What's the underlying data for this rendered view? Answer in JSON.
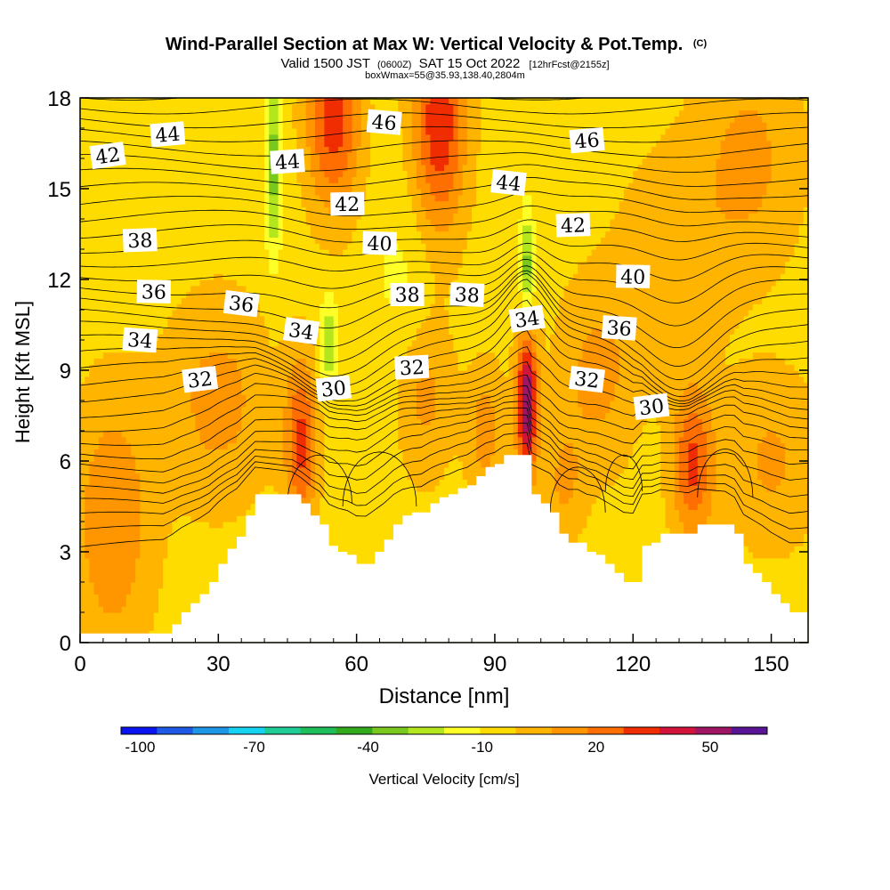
{
  "chart_data": {
    "type": "heatmap",
    "title": "Wind-Parallel Section at Max W: Vertical Velocity & Pot.Temp.",
    "title_mark": "(C)",
    "subtitle": {
      "prefix": "Valid 1500 JST",
      "utc": "(0600Z)",
      "date": "SAT 15 Oct 2022",
      "forecast": "[12hrFcst@2155z]"
    },
    "box_line": "boxWmax=55@35.93,138.40,2804m",
    "xlabel": "Distance [nm]",
    "ylabel": "Height [Kft MSL]",
    "xlim": [
      0,
      158
    ],
    "ylim": [
      0,
      18
    ],
    "x_ticks": [
      0,
      30,
      60,
      90,
      120,
      150
    ],
    "y_ticks": [
      0,
      3,
      6,
      9,
      12,
      15,
      18
    ],
    "colorbar": {
      "label": "Vertical Velocity [cm/s]",
      "tick_labels": [
        "-100",
        "-70",
        "-40",
        "-10",
        "20",
        "50"
      ],
      "tick_values": [
        -100,
        -70,
        -40,
        -10,
        20,
        50
      ],
      "range": [
        -105,
        65
      ],
      "colors": [
        "#0a14f0",
        "#1e5ae6",
        "#1e96e6",
        "#14d2f0",
        "#1ecc96",
        "#1ebe5a",
        "#32aa1e",
        "#78c81e",
        "#b4e61e",
        "#ffff28",
        "#ffdc00",
        "#ffb400",
        "#ff9600",
        "#ff6e00",
        "#f02d00",
        "#d2143c",
        "#a01464",
        "#5a1496"
      ]
    },
    "terrain_kft": [
      [
        0,
        0.3
      ],
      [
        18,
        0.3
      ],
      [
        20,
        0.6
      ],
      [
        22,
        1
      ],
      [
        24,
        1.3
      ],
      [
        26,
        1.6
      ],
      [
        28,
        2
      ],
      [
        30,
        2.6
      ],
      [
        32,
        3.1
      ],
      [
        34,
        3.5
      ],
      [
        36,
        4.2
      ],
      [
        38,
        4.9
      ],
      [
        46,
        4.9
      ],
      [
        48,
        4.6
      ],
      [
        50,
        4.2
      ],
      [
        52,
        3.9
      ],
      [
        54,
        3.2
      ],
      [
        56,
        3.0
      ],
      [
        58,
        2.9
      ],
      [
        60,
        2.6
      ],
      [
        62,
        2.6
      ],
      [
        64,
        3.0
      ],
      [
        66,
        3.4
      ],
      [
        68,
        3.9
      ],
      [
        70,
        4.2
      ],
      [
        72,
        4.3
      ],
      [
        74,
        4.3
      ],
      [
        76,
        4.6
      ],
      [
        78,
        4.8
      ],
      [
        80,
        4.9
      ],
      [
        82,
        5.1
      ],
      [
        84,
        5.2
      ],
      [
        86,
        5.5
      ],
      [
        88,
        5.8
      ],
      [
        90,
        5.9
      ],
      [
        92,
        6.2
      ],
      [
        97,
        6.2
      ],
      [
        98,
        4.9
      ],
      [
        100,
        4.6
      ],
      [
        102,
        4.3
      ],
      [
        104,
        3.6
      ],
      [
        106,
        3.3
      ],
      [
        108,
        3.3
      ],
      [
        110,
        3.0
      ],
      [
        112,
        2.9
      ],
      [
        114,
        2.6
      ],
      [
        116,
        2.3
      ],
      [
        118,
        2.0
      ],
      [
        120,
        2.0
      ],
      [
        122,
        3.2
      ],
      [
        124,
        3.3
      ],
      [
        126,
        3.6
      ],
      [
        132,
        3.6
      ],
      [
        134,
        3.9
      ],
      [
        140,
        3.9
      ],
      [
        142,
        3.6
      ],
      [
        144,
        2.6
      ],
      [
        146,
        2.3
      ],
      [
        148,
        2.0
      ],
      [
        150,
        1.6
      ],
      [
        152,
        1.3
      ],
      [
        154,
        1.0
      ],
      [
        156,
        1.0
      ],
      [
        158,
        1.0
      ]
    ],
    "w_field_cm_s": {
      "background": -5,
      "blobs": [
        {
          "x": 78,
          "y": 17.2,
          "sx": 4,
          "sy": 2.6,
          "amp": 40
        },
        {
          "x": 55,
          "y": 17.4,
          "sx": 4,
          "sy": 2.2,
          "amp": 38
        },
        {
          "x": 97,
          "y": 7.9,
          "sx": 1.6,
          "sy": 1.7,
          "amp": 60
        },
        {
          "x": 48,
          "y": 6.6,
          "sx": 2.4,
          "sy": 1.9,
          "amp": 35
        },
        {
          "x": 133,
          "y": 5.9,
          "sx": 3.2,
          "sy": 1.7,
          "amp": 34
        },
        {
          "x": 42,
          "y": 15.8,
          "sx": 1.2,
          "sy": 2.2,
          "amp": -30
        },
        {
          "x": 97,
          "y": 12.4,
          "sx": 1.1,
          "sy": 1.3,
          "amp": -30
        },
        {
          "x": 54,
          "y": 9.9,
          "sx": 1.4,
          "sy": 1.1,
          "amp": -25
        },
        {
          "x": 7,
          "y": 4.0,
          "sx": 6,
          "sy": 3.0,
          "amp": 22
        },
        {
          "x": 30,
          "y": 8.0,
          "sx": 8,
          "sy": 2.4,
          "amp": 17
        },
        {
          "x": 112,
          "y": 8.8,
          "sx": 6,
          "sy": 2.2,
          "amp": 16
        },
        {
          "x": 150,
          "y": 6.0,
          "sx": 7,
          "sy": 2.0,
          "amp": 15
        },
        {
          "x": 75,
          "y": 8.2,
          "sx": 4,
          "sy": 1.9,
          "amp": 16
        },
        {
          "x": 88,
          "y": 7.0,
          "sx": 3,
          "sy": 1.5,
          "amp": 18
        },
        {
          "x": 145,
          "y": 16.0,
          "sx": 8,
          "sy": 2.6,
          "amp": 16
        },
        {
          "x": 70,
          "y": 12.0,
          "sx": 5,
          "sy": 2.0,
          "amp": -8
        },
        {
          "x": 128,
          "y": 12.5,
          "sx": 8,
          "sy": 2.5,
          "amp": 12
        },
        {
          "x": 105,
          "y": 5.2,
          "sx": 3,
          "sy": 1.3,
          "amp": 14
        }
      ]
    },
    "theta_labels": [
      {
        "text": "42",
        "x": 6,
        "y": 16.1
      },
      {
        "text": "44",
        "x": 19,
        "y": 16.8
      },
      {
        "text": "38",
        "x": 13,
        "y": 13.3
      },
      {
        "text": "36",
        "x": 16,
        "y": 11.6
      },
      {
        "text": "34",
        "x": 13,
        "y": 10.0
      },
      {
        "text": "36",
        "x": 35,
        "y": 11.2
      },
      {
        "text": "32",
        "x": 26,
        "y": 8.7
      },
      {
        "text": "44",
        "x": 45,
        "y": 15.9
      },
      {
        "text": "42",
        "x": 58,
        "y": 14.5
      },
      {
        "text": "40",
        "x": 65,
        "y": 13.2
      },
      {
        "text": "46",
        "x": 66,
        "y": 17.2
      },
      {
        "text": "34",
        "x": 48,
        "y": 10.3
      },
      {
        "text": "30",
        "x": 55,
        "y": 8.4
      },
      {
        "text": "32",
        "x": 72,
        "y": 9.1
      },
      {
        "text": "38",
        "x": 71,
        "y": 11.5
      },
      {
        "text": "38",
        "x": 84,
        "y": 11.5
      },
      {
        "text": "44",
        "x": 93,
        "y": 15.2
      },
      {
        "text": "34",
        "x": 97,
        "y": 10.7
      },
      {
        "text": "46",
        "x": 110,
        "y": 16.6
      },
      {
        "text": "42",
        "x": 107,
        "y": 13.8
      },
      {
        "text": "40",
        "x": 120,
        "y": 12.1
      },
      {
        "text": "36",
        "x": 117,
        "y": 10.4
      },
      {
        "text": "32",
        "x": 110,
        "y": 8.7
      },
      {
        "text": "30",
        "x": 124,
        "y": 7.8
      }
    ]
  }
}
